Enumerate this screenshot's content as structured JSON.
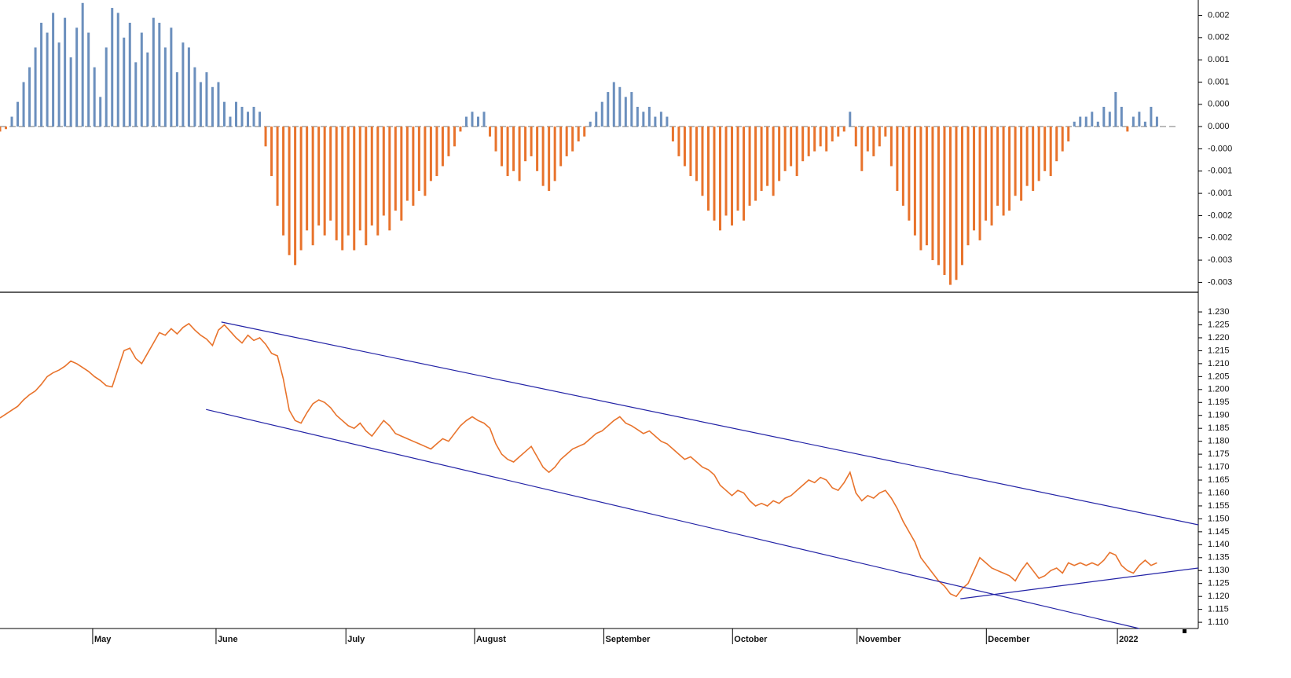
{
  "chart_data": [
    {
      "type": "bar",
      "xlim": [
        0,
        203
      ],
      "ylim": [
        -0.00335,
        0.00256
      ],
      "yticks": [
        {
          "value": 0.00225,
          "label": "0.002"
        },
        {
          "value": 0.0018,
          "label": "0.002"
        },
        {
          "value": 0.00135,
          "label": "0.001"
        },
        {
          "value": 0.0009,
          "label": "0.001"
        },
        {
          "value": 0.00045,
          "label": "0.000"
        },
        {
          "value": 0,
          "label": "0.000"
        },
        {
          "value": -0.00045,
          "label": "-0.000"
        },
        {
          "value": -0.0009,
          "label": "-0.001"
        },
        {
          "value": -0.00135,
          "label": "-0.001"
        },
        {
          "value": -0.0018,
          "label": "-0.002"
        },
        {
          "value": -0.00225,
          "label": "-0.002"
        },
        {
          "value": -0.0027,
          "label": "-0.003"
        },
        {
          "value": -0.00315,
          "label": "-0.003"
        }
      ],
      "positive_color": "#6b8fbd",
      "negative_color": "#e8732c",
      "zero_line": true,
      "values": [
        -0.0001,
        -5e-05,
        0.0002,
        0.0005,
        0.0009,
        0.0012,
        0.0016,
        0.0021,
        0.0019,
        0.0023,
        0.0017,
        0.0022,
        0.0014,
        0.002,
        0.0025,
        0.0019,
        0.0012,
        0.0006,
        0.0016,
        0.0024,
        0.0023,
        0.0018,
        0.0021,
        0.0013,
        0.0019,
        0.0015,
        0.0022,
        0.0021,
        0.0016,
        0.002,
        0.0011,
        0.0017,
        0.0016,
        0.0012,
        0.0009,
        0.0011,
        0.0008,
        0.0009,
        0.0005,
        0.0002,
        0.0005,
        0.0004,
        0.0003,
        0.0004,
        0.0003,
        -0.0004,
        -0.001,
        -0.0016,
        -0.0022,
        -0.0026,
        -0.0028,
        -0.0025,
        -0.0021,
        -0.0024,
        -0.002,
        -0.0022,
        -0.0019,
        -0.0023,
        -0.0025,
        -0.0022,
        -0.0025,
        -0.0021,
        -0.0024,
        -0.002,
        -0.0022,
        -0.0018,
        -0.0021,
        -0.0017,
        -0.0019,
        -0.0015,
        -0.0016,
        -0.0013,
        -0.0014,
        -0.0011,
        -0.001,
        -0.0008,
        -0.0006,
        -0.0004,
        -0.0001,
        0.0002,
        0.0003,
        0.0002,
        0.0003,
        -0.0002,
        -0.0005,
        -0.0008,
        -0.001,
        -0.0009,
        -0.0011,
        -0.0007,
        -0.0006,
        -0.0009,
        -0.0012,
        -0.0013,
        -0.0011,
        -0.0008,
        -0.0006,
        -0.0005,
        -0.0003,
        -0.0002,
        0.0001,
        0.0003,
        0.0005,
        0.0007,
        0.0009,
        0.0008,
        0.0006,
        0.0007,
        0.0004,
        0.0003,
        0.0004,
        0.0002,
        0.0003,
        0.0002,
        -0.0003,
        -0.0006,
        -0.0008,
        -0.001,
        -0.0011,
        -0.0014,
        -0.0017,
        -0.0019,
        -0.0021,
        -0.0018,
        -0.002,
        -0.0017,
        -0.0019,
        -0.0016,
        -0.0015,
        -0.0013,
        -0.0012,
        -0.0014,
        -0.0011,
        -0.0009,
        -0.0008,
        -0.001,
        -0.0007,
        -0.0006,
        -0.0005,
        -0.0004,
        -0.0005,
        -0.0003,
        -0.0002,
        -0.0001,
        0.0003,
        -0.0004,
        -0.0009,
        -0.0005,
        -0.0006,
        -0.0004,
        -0.0002,
        -0.0008,
        -0.0013,
        -0.0016,
        -0.0019,
        -0.0022,
        -0.0025,
        -0.0024,
        -0.0027,
        -0.0028,
        -0.003,
        -0.0032,
        -0.0031,
        -0.0028,
        -0.0024,
        -0.0021,
        -0.0023,
        -0.0019,
        -0.002,
        -0.0016,
        -0.0018,
        -0.0017,
        -0.0014,
        -0.0015,
        -0.0012,
        -0.0013,
        -0.0011,
        -0.0009,
        -0.001,
        -0.0007,
        -0.0005,
        -0.0003,
        0.0001,
        0.0002,
        0.0002,
        0.0003,
        0.0001,
        0.0004,
        0.0003,
        0.0007,
        0.0004,
        -0.0001,
        0.0002,
        0.0003,
        0.0001,
        0.0004,
        0.0002
      ]
    },
    {
      "type": "line",
      "xlim": [
        0,
        203
      ],
      "ylim": [
        1.1076,
        1.237
      ],
      "yticks": [
        {
          "value": 1.23,
          "label": "1.230"
        },
        {
          "value": 1.225,
          "label": "1.225"
        },
        {
          "value": 1.22,
          "label": "1.220"
        },
        {
          "value": 1.215,
          "label": "1.215"
        },
        {
          "value": 1.21,
          "label": "1.210"
        },
        {
          "value": 1.205,
          "label": "1.205"
        },
        {
          "value": 1.2,
          "label": "1.200"
        },
        {
          "value": 1.195,
          "label": "1.195"
        },
        {
          "value": 1.19,
          "label": "1.190"
        },
        {
          "value": 1.185,
          "label": "1.185"
        },
        {
          "value": 1.18,
          "label": "1.180"
        },
        {
          "value": 1.175,
          "label": "1.175"
        },
        {
          "value": 1.17,
          "label": "1.170"
        },
        {
          "value": 1.165,
          "label": "1.165"
        },
        {
          "value": 1.16,
          "label": "1.160"
        },
        {
          "value": 1.155,
          "label": "1.155"
        },
        {
          "value": 1.15,
          "label": "1.150"
        },
        {
          "value": 1.145,
          "label": "1.145"
        },
        {
          "value": 1.14,
          "label": "1.140"
        },
        {
          "value": 1.135,
          "label": "1.135"
        },
        {
          "value": 1.13,
          "label": "1.130"
        },
        {
          "value": 1.125,
          "label": "1.125"
        },
        {
          "value": 1.12,
          "label": "1.120"
        },
        {
          "value": 1.115,
          "label": "1.115"
        },
        {
          "value": 1.11,
          "label": "1.110"
        }
      ],
      "xticks": [
        {
          "value": 15.7,
          "label": "May"
        },
        {
          "value": 36.6,
          "label": "June"
        },
        {
          "value": 58.6,
          "label": "July"
        },
        {
          "value": 80.4,
          "label": "August"
        },
        {
          "value": 102.3,
          "label": "September"
        },
        {
          "value": 124.1,
          "label": "October"
        },
        {
          "value": 145.2,
          "label": "November"
        },
        {
          "value": 167.1,
          "label": "December"
        },
        {
          "value": 189.3,
          "label": "2022"
        }
      ],
      "color": "#e8732c",
      "values": [
        1.189,
        1.1905,
        1.192,
        1.1935,
        1.196,
        1.198,
        1.1995,
        1.202,
        1.205,
        1.2065,
        1.2075,
        1.209,
        1.211,
        1.21,
        1.2085,
        1.207,
        1.205,
        1.2035,
        1.2015,
        1.201,
        1.208,
        1.215,
        1.216,
        1.212,
        1.21,
        1.214,
        1.218,
        1.222,
        1.221,
        1.2235,
        1.2215,
        1.224,
        1.2255,
        1.223,
        1.221,
        1.2195,
        1.217,
        1.223,
        1.225,
        1.2225,
        1.22,
        1.218,
        1.221,
        1.219,
        1.22,
        1.2175,
        1.214,
        1.213,
        1.204,
        1.192,
        1.188,
        1.187,
        1.191,
        1.1945,
        1.196,
        1.195,
        1.193,
        1.19,
        1.188,
        1.186,
        1.185,
        1.187,
        1.184,
        1.182,
        1.185,
        1.188,
        1.186,
        1.183,
        1.182,
        1.181,
        1.18,
        1.179,
        1.178,
        1.177,
        1.179,
        1.181,
        1.18,
        1.183,
        1.186,
        1.188,
        1.1895,
        1.188,
        1.187,
        1.185,
        1.179,
        1.175,
        1.173,
        1.172,
        1.174,
        1.176,
        1.178,
        1.174,
        1.17,
        1.168,
        1.17,
        1.173,
        1.175,
        1.177,
        1.178,
        1.179,
        1.181,
        1.183,
        1.184,
        1.186,
        1.188,
        1.1895,
        1.187,
        1.186,
        1.1845,
        1.183,
        1.184,
        1.182,
        1.18,
        1.179,
        1.177,
        1.175,
        1.173,
        1.174,
        1.172,
        1.17,
        1.169,
        1.167,
        1.163,
        1.161,
        1.159,
        1.161,
        1.16,
        1.157,
        1.155,
        1.156,
        1.155,
        1.157,
        1.156,
        1.158,
        1.159,
        1.161,
        1.163,
        1.165,
        1.164,
        1.166,
        1.165,
        1.162,
        1.161,
        1.164,
        1.168,
        1.16,
        1.157,
        1.159,
        1.158,
        1.16,
        1.161,
        1.158,
        1.154,
        1.149,
        1.145,
        1.141,
        1.135,
        1.132,
        1.129,
        1.126,
        1.124,
        1.121,
        1.12,
        1.123,
        1.125,
        1.13,
        1.135,
        1.133,
        1.131,
        1.13,
        1.129,
        1.128,
        1.126,
        1.13,
        1.133,
        1.13,
        1.127,
        1.128,
        1.13,
        1.131,
        1.129,
        1.133,
        1.132,
        1.133,
        1.132,
        1.133,
        1.132,
        1.134,
        1.137,
        1.136,
        1.132,
        1.13,
        1.129,
        1.132,
        1.134,
        1.132,
        1.133
      ],
      "trendline_color": "#2323a6",
      "trendlines": [
        {
          "x": [
            37.5,
            203
          ],
          "y": [
            1.2261,
            1.1477
          ]
        },
        {
          "x": [
            34.9,
            193
          ],
          "y": [
            1.1923,
            1.1076
          ]
        },
        {
          "x": [
            162.7,
            203
          ],
          "y": [
            1.1191,
            1.131
          ]
        }
      ]
    }
  ]
}
